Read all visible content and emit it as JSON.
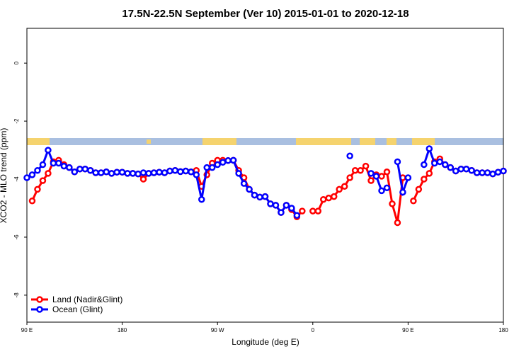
{
  "chart_data": {
    "type": "line",
    "title": "17.5N-22.5N September (Ver 10)   2015-01-01 to 2020-12-18",
    "x_label": "Longitude (deg E)",
    "y_label": "XCO2 - MLO trend (ppm)",
    "xlim": [
      90,
      540
    ],
    "ylim": [
      -8.93,
      1.2
    ],
    "xticks": [
      {
        "value": 90,
        "label": "90 E"
      },
      180,
      {
        "value": 270,
        "label": "90 W"
      },
      {
        "value": 360,
        "label": "0"
      },
      {
        "value": 450,
        "label": "90 E"
      },
      {
        "value": 540,
        "label": "180"
      }
    ],
    "yticks": [
      0,
      -2,
      -4,
      -6,
      -8
    ],
    "legend": "bottom-left",
    "x": [
      90,
      95,
      100,
      105,
      110,
      115,
      120,
      125,
      130,
      135,
      140,
      145,
      150,
      155,
      160,
      165,
      170,
      175,
      180,
      185,
      190,
      195,
      200,
      205,
      210,
      215,
      220,
      225,
      230,
      235,
      240,
      245,
      250,
      255,
      260,
      265,
      270,
      275,
      280,
      285,
      290,
      295,
      300,
      305,
      310,
      315,
      320,
      325,
      330,
      335,
      340,
      345,
      350,
      355,
      360,
      365,
      370,
      375,
      380,
      385,
      390,
      395,
      400,
      405,
      410,
      415,
      420,
      425,
      430,
      435,
      440,
      445,
      450,
      455,
      460,
      465,
      470,
      475,
      480,
      485,
      490,
      495,
      500,
      505,
      510,
      515,
      520,
      525,
      530,
      535,
      540
    ],
    "series": [
      {
        "name": "Land (Nadir&Glint)",
        "color": "#ff0000",
        "values": [
          null,
          -4.75,
          -4.35,
          -4.05,
          -3.8,
          -3.4,
          -3.35,
          -3.5,
          -3.6,
          -3.75,
          -3.65,
          -3.65,
          -3.7,
          -3.78,
          -3.78,
          -3.75,
          -3.8,
          -3.76,
          -3.76,
          -3.8,
          -3.8,
          -3.82,
          -4.0,
          -3.8,
          -3.78,
          -3.76,
          -3.78,
          -3.72,
          -3.7,
          -3.74,
          -3.72,
          -3.75,
          -3.7,
          -4.25,
          -3.85,
          -3.45,
          -3.35,
          -3.35,
          -3.36,
          -3.35,
          -3.7,
          -3.95,
          -4.35,
          -4.55,
          -4.62,
          -4.6,
          -4.85,
          -4.9,
          -5.15,
          -4.9,
          -5.05,
          -5.3,
          -5.1,
          null,
          -5.1,
          -5.1,
          -4.7,
          -4.65,
          -4.6,
          -4.35,
          -4.25,
          -3.95,
          -3.7,
          -3.7,
          -3.55,
          -4.05,
          -3.85,
          -3.9,
          -3.75,
          -4.85,
          -5.5,
          -3.95,
          null,
          -4.75,
          -4.35,
          -4.0,
          -3.8,
          -3.4,
          -3.3,
          -3.5,
          -3.6,
          -3.72,
          -3.65,
          -3.65,
          -3.7,
          -3.78,
          -3.78,
          -3.78,
          -3.82,
          -3.76,
          -3.72
        ]
      },
      {
        "name": "Ocean (Glint)",
        "color": "#0000ff",
        "values": [
          -3.95,
          -3.85,
          -3.7,
          -3.5,
          -3.0,
          -3.45,
          -3.45,
          -3.55,
          -3.6,
          -3.75,
          -3.65,
          -3.65,
          -3.7,
          -3.78,
          -3.78,
          -3.75,
          -3.8,
          -3.76,
          -3.76,
          -3.8,
          -3.8,
          -3.82,
          -3.78,
          -3.8,
          -3.78,
          -3.76,
          -3.78,
          -3.72,
          -3.7,
          -3.74,
          -3.72,
          -3.75,
          -3.85,
          -4.7,
          -3.6,
          -3.6,
          -3.5,
          -3.42,
          -3.36,
          -3.35,
          -3.8,
          -4.15,
          -4.35,
          -4.55,
          -4.62,
          -4.6,
          -4.85,
          -4.9,
          -5.15,
          -4.9,
          -5.0,
          -5.25,
          null,
          null,
          null,
          null,
          null,
          null,
          null,
          null,
          null,
          -3.2,
          null,
          null,
          null,
          -3.8,
          -3.9,
          -4.4,
          -4.3,
          null,
          -3.4,
          -4.45,
          -3.95,
          null,
          null,
          -3.5,
          -2.95,
          -3.45,
          -3.4,
          -3.5,
          -3.6,
          -3.72,
          -3.65,
          -3.65,
          -3.7,
          -3.78,
          -3.78,
          -3.78,
          -3.82,
          -3.76,
          -3.72
        ]
      }
    ]
  }
}
